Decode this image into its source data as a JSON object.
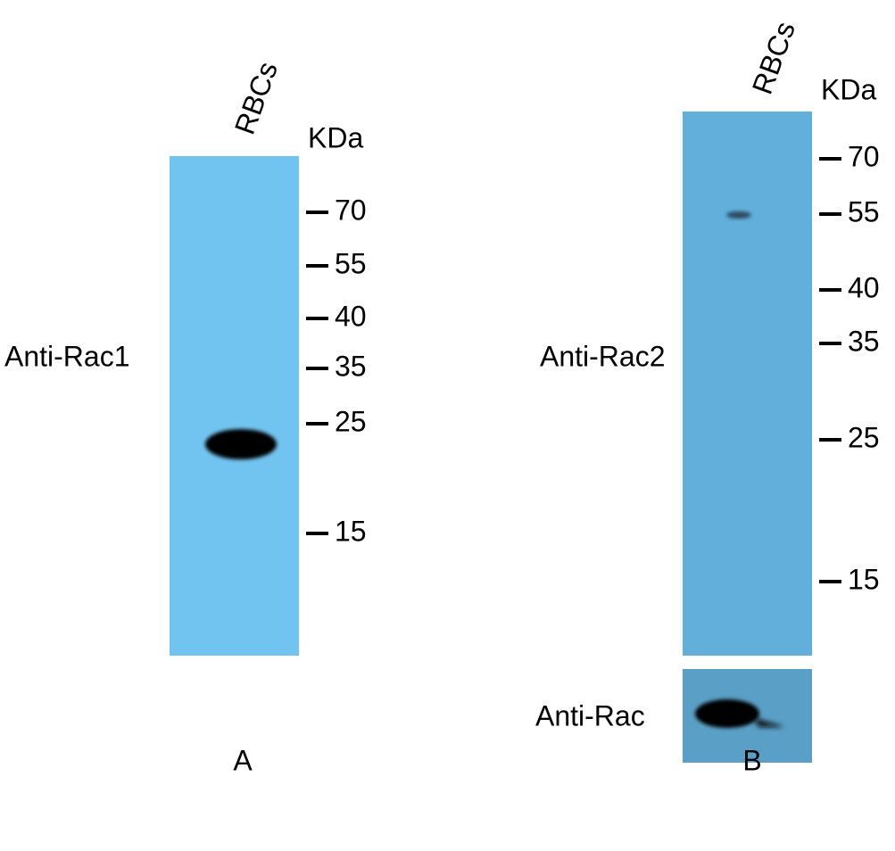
{
  "panels": [
    {
      "label": "A",
      "lane": "RBCs",
      "unit": "KDa",
      "antibody": "Anti-Rac1",
      "markers": [
        "70",
        "55",
        "40",
        "35",
        "25",
        "15"
      ]
    },
    {
      "label": "B",
      "lane": "RBCs",
      "unit": "KDa",
      "antibody": "Anti-Rac2",
      "markers": [
        "70",
        "55",
        "40",
        "35",
        "25",
        "15"
      ],
      "loading_antibody": "Anti-Rac"
    }
  ]
}
